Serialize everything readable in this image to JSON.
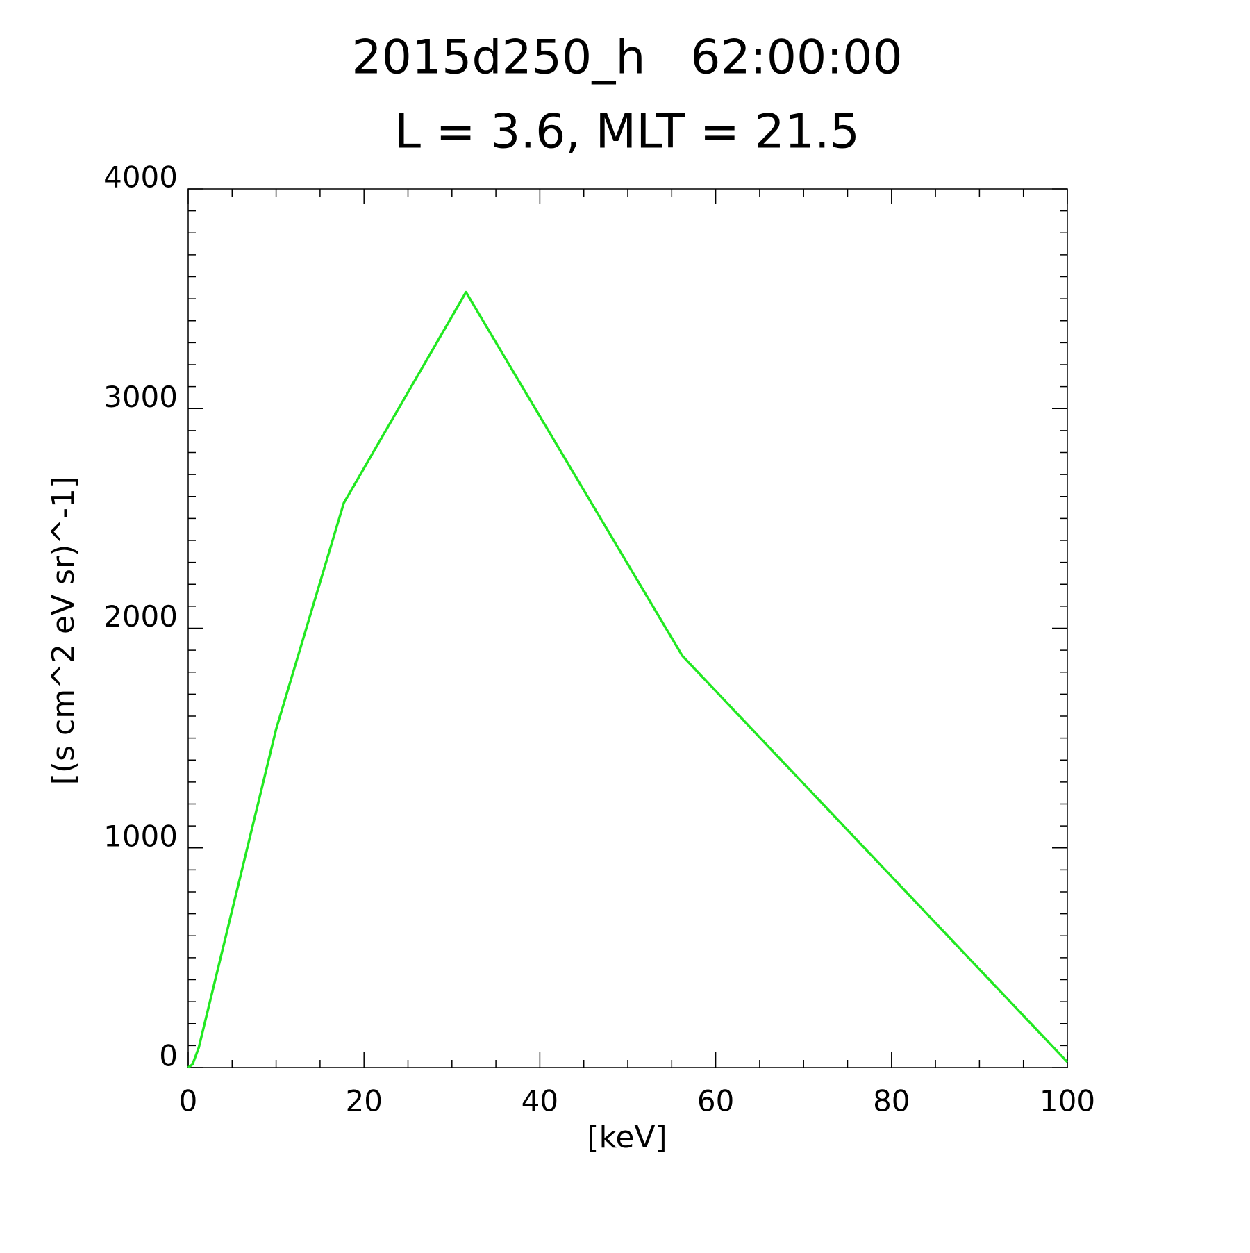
{
  "chart_data": {
    "type": "line",
    "title": "2015d250_h   62:00:00",
    "subtitle": "L = 3.6, MLT = 21.5",
    "x_label": "[keV]",
    "y_label": "[(s cm^2 eV sr)^-1]",
    "x": [
      0,
      0.5,
      1.2,
      10,
      17.7,
      31.6,
      56.2,
      100
    ],
    "series": [
      {
        "color": "#22e822",
        "values": [
          0,
          15,
          90,
          1540,
          2570,
          3530,
          1875,
          25
        ]
      }
    ],
    "xlim": [
      0,
      100
    ],
    "xticks": [
      0,
      20,
      40,
      60,
      80,
      100
    ],
    "ylim": [
      0,
      4000
    ],
    "yticks": [
      0,
      1000,
      2000,
      3000,
      4000
    ]
  }
}
